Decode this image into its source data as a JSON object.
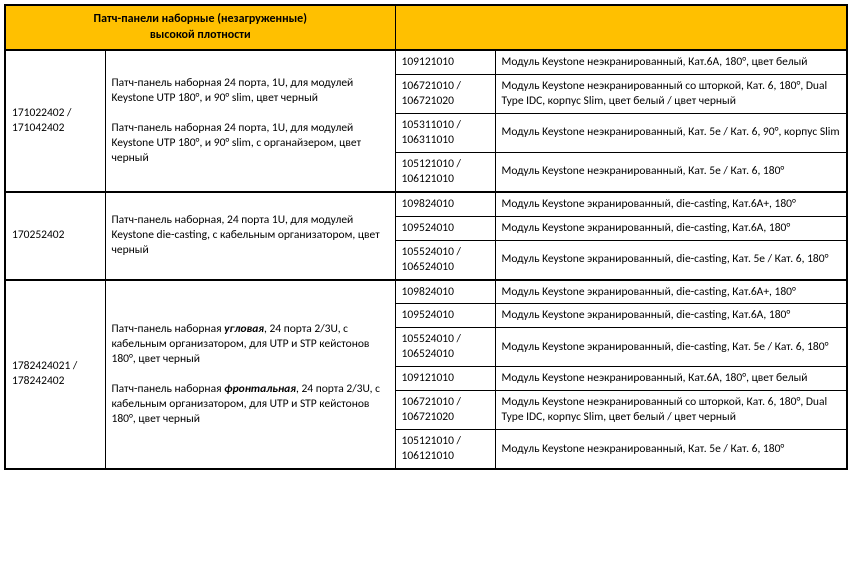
{
  "colors": {
    "header_bg": "#ffc000",
    "border": "#000000",
    "text": "#000000",
    "bg": "#ffffff"
  },
  "header": {
    "title_line1": "Патч-панели наборные (незагруженные)",
    "title_line2": "высокой плотности",
    "empty": ""
  },
  "groups": [
    {
      "left_code": "171022402 / 171042402",
      "left_desc_p1": "Патч-панель наборная 24 порта, 1U, для модулей Keystone UTP 180°, и 90° slim, цвет черный",
      "left_desc_p2": "Патч-панель наборная 24 порта, 1U, для модулей Keystone UTP 180°, и 90° slim, с органайзером, цвет черный",
      "rows": [
        {
          "code": "109121010",
          "desc": "Модуль Keystone неэкранированный, Кат.6A, 180°, цвет белый"
        },
        {
          "code": "106721010 / 106721020",
          "desc": "Модуль Keystone неэкранированный со шторкой, Кат. 6, 180°, Dual Type IDC, корпус Slim, цвет белый / цвет черный"
        },
        {
          "code": "105311010 / 106311010",
          "desc": "Модуль Keystone неэкранированный, Кат. 5е / Кат. 6, 90°, корпус Slim"
        },
        {
          "code": "105121010 / 106121010",
          "desc": "Модуль Keystone неэкранированный, Кат. 5е / Кат. 6, 180°"
        }
      ]
    },
    {
      "left_code": "170252402",
      "left_desc_p1": "Патч-панель наборная, 24 порта 1U, для модулей Keystone die-casting, с кабельным организатором, цвет черный",
      "left_desc_p2": "",
      "rows": [
        {
          "code": "109824010",
          "desc": "Модуль Keystone экранированный, die-casting, Кат.6A+, 180°"
        },
        {
          "code": "109524010",
          "desc": "Модуль Keystone экранированный, die-casting, Кат.6A, 180°"
        },
        {
          "code": "105524010 / 106524010",
          "desc": "Модуль Keystone экранированный, die-casting, Кат. 5e / Кат. 6,  180°"
        }
      ]
    },
    {
      "left_code": "1782424021 / 178242402",
      "left_desc_p1_pre": "Патч-панель наборная ",
      "left_desc_p1_em": "угловая",
      "left_desc_p1_post": ", 24 порта 2/3U, с кабельным организатором, для UTP и STP кейстонов 180°, цвет черный",
      "left_desc_p2_pre": "Патч-панель наборная ",
      "left_desc_p2_em": "фронтальная",
      "left_desc_p2_post": ", 24 порта 2/3U, с кабельным организатором, для UTP и STP кейстонов 180°, цвет черный",
      "rows": [
        {
          "code": "109824010",
          "desc": "Модуль Keystone экранированный, die-casting, Кат.6A+, 180°"
        },
        {
          "code": "109524010",
          "desc": "Модуль Keystone экранированный, die-casting, Кат.6A, 180°"
        },
        {
          "code": "105524010 / 106524010",
          "desc": "Модуль Keystone экранированный, die-casting, Кат. 5e / Кат. 6,  180°"
        },
        {
          "code": "109121010",
          "desc": "Модуль Keystone неэкранированный, Кат.6A, 180°, цвет белый"
        },
        {
          "code": "106721010 / 106721020",
          "desc": "Модуль Keystone неэкранированный со шторкой, Кат. 6, 180°, Dual Type IDC, корпус Slim, цвет белый / цвет черный"
        },
        {
          "code": "105121010 / 106121010",
          "desc": "Модуль Keystone неэкранированный, Кат. 5е / Кат. 6, 180°"
        }
      ]
    }
  ]
}
